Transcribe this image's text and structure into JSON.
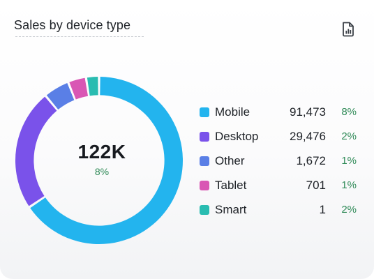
{
  "card": {
    "title": "Sales by device type",
    "report_icon": "report-icon"
  },
  "total": {
    "value": "122K",
    "change": "8%"
  },
  "chart_data": {
    "type": "pie",
    "title": "Sales by device type",
    "categories": [
      "Mobile",
      "Desktop",
      "Other",
      "Tablet",
      "Smart"
    ],
    "values": [
      91473,
      29476,
      1672,
      701,
      1
    ],
    "display_shares": [
      0.656,
      0.234,
      0.05,
      0.035,
      0.025
    ],
    "colors": [
      "#23b4ee",
      "#7a52ea",
      "#5a7fe6",
      "#d957b4",
      "#29bcb1"
    ],
    "inner_radius_ratio": 0.78
  },
  "legend": [
    {
      "label": "Mobile",
      "value": "91,473",
      "change": "8%",
      "color": "#23b4ee"
    },
    {
      "label": "Desktop",
      "value": "29,476",
      "change": "2%",
      "color": "#7a52ea"
    },
    {
      "label": "Other",
      "value": "1,672",
      "change": "1%",
      "color": "#5a7fe6"
    },
    {
      "label": "Tablet",
      "value": "701",
      "change": "1%",
      "color": "#d957b4"
    },
    {
      "label": "Smart",
      "value": "1",
      "change": "2%",
      "color": "#29bcb1"
    }
  ],
  "colors": {
    "positive": "#2f8a57",
    "text": "#1e2227"
  }
}
